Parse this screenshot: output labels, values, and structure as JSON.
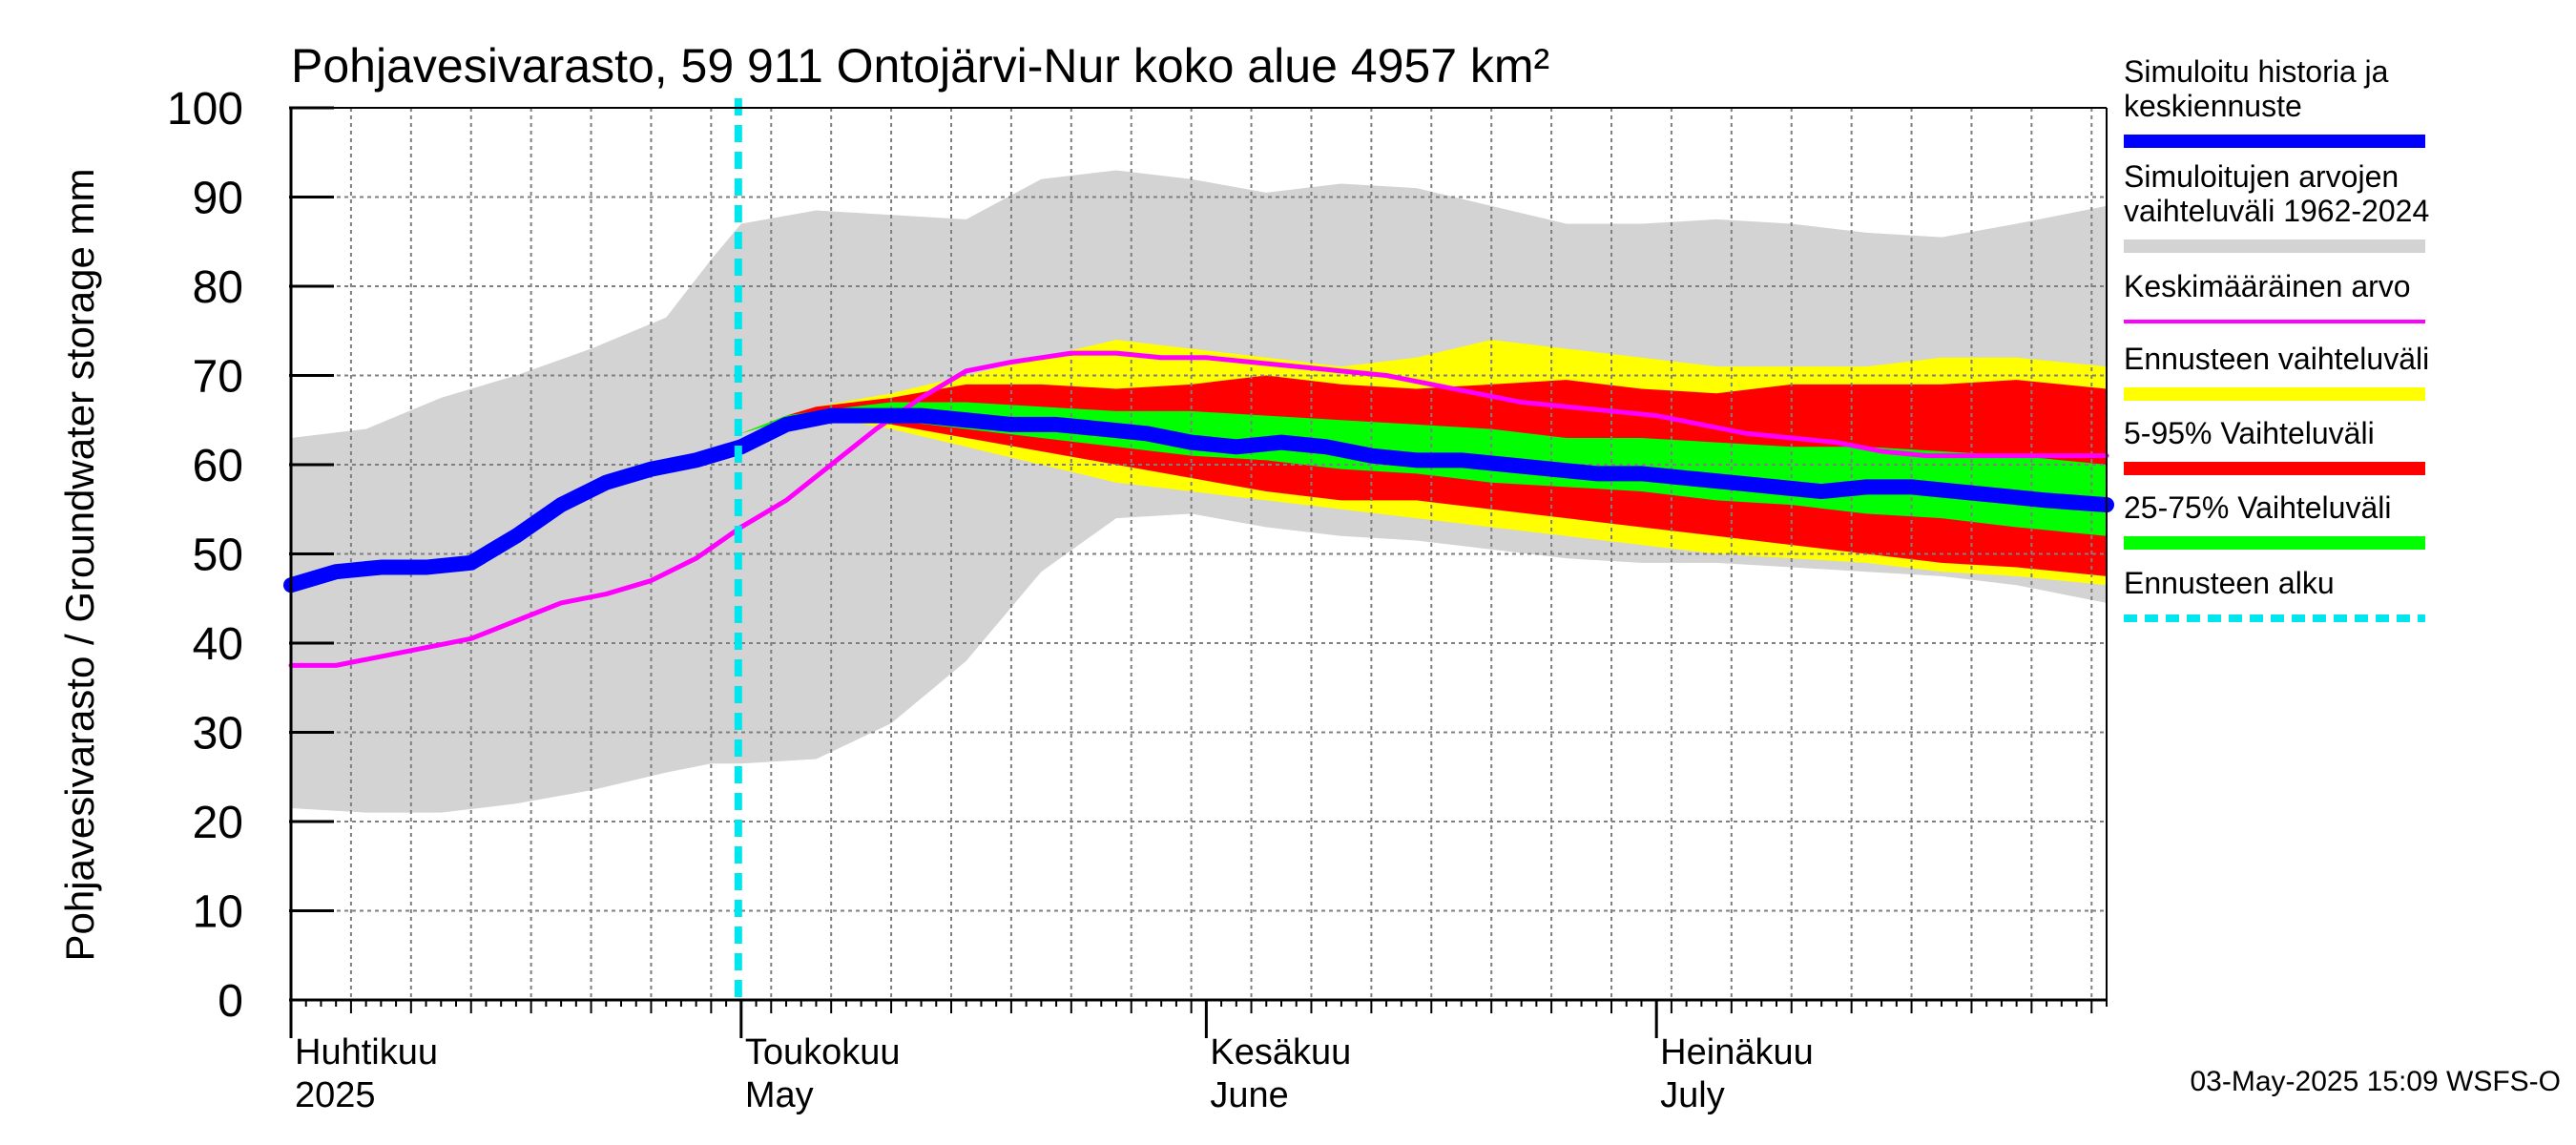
{
  "chart_data": {
    "type": "area",
    "title": "Pohjavesivarasto, 59 911 Ontojärvi-Nur koko alue 4957 km²",
    "ylabel": "Pohjavesivarasto / Groundwater storage   mm",
    "ylim": [
      0,
      100
    ],
    "yticks": [
      0,
      10,
      20,
      30,
      40,
      50,
      60,
      70,
      80,
      90,
      100
    ],
    "xlim_days": [
      0,
      121
    ],
    "x_unit": "days since 2025-04-01",
    "month_labels": [
      {
        "day": 0,
        "line1": "Huhtikuu",
        "line2": "2025"
      },
      {
        "day": 30,
        "line1": "Toukokuu",
        "line2": "May"
      },
      {
        "day": 61,
        "line1": "Kesäkuu",
        "line2": "June"
      },
      {
        "day": 91,
        "line1": "Heinäkuu",
        "line2": "July"
      }
    ],
    "forecast_start_day": 30,
    "series": {
      "hist_range": {
        "name": "Simuloitujen arvojen vaihteluväli 1962-2024",
        "color": "#d3d3d3",
        "x": [
          0,
          5,
          10,
          15,
          20,
          25,
          28,
          30,
          35,
          40,
          45,
          50,
          55,
          60,
          65,
          70,
          75,
          80,
          85,
          90,
          95,
          100,
          105,
          110,
          115,
          121
        ],
        "high": [
          63,
          64,
          67.5,
          70,
          73,
          76.5,
          83,
          87,
          88.5,
          88,
          87.5,
          92,
          93,
          92,
          90.5,
          91.5,
          91,
          89,
          87,
          87,
          87.5,
          87,
          86,
          85.5,
          87,
          89
        ],
        "low": [
          21.5,
          21,
          21,
          22,
          23.5,
          25.5,
          26.5,
          26.5,
          27,
          31,
          38,
          48,
          54,
          54.5,
          53,
          52,
          51.5,
          50.5,
          49.5,
          49,
          49,
          48.5,
          48,
          47.5,
          46.5,
          44.5
        ]
      },
      "forecast_range": {
        "name": "Ennusteen vaihteluväli",
        "color": "#ffff00",
        "x": [
          30,
          33,
          35,
          40,
          45,
          50,
          55,
          60,
          65,
          70,
          75,
          80,
          85,
          90,
          95,
          100,
          105,
          110,
          115,
          121
        ],
        "high": [
          63.5,
          65.5,
          66.5,
          68,
          70,
          72,
          74,
          73,
          72,
          71,
          72,
          74,
          73,
          72,
          71,
          71,
          71,
          72,
          72,
          71
        ],
        "low": [
          63.5,
          65,
          65.5,
          64,
          62,
          60,
          58,
          57,
          56,
          55,
          54,
          53,
          52,
          51,
          50,
          49.5,
          49,
          48,
          47.5,
          46.5
        ]
      },
      "p5_95": {
        "name": "5-95% Vaihteluväli",
        "color": "#ff0000",
        "x": [
          30,
          33,
          35,
          40,
          45,
          50,
          55,
          60,
          65,
          70,
          75,
          80,
          85,
          90,
          95,
          100,
          105,
          110,
          115,
          121
        ],
        "high": [
          63.5,
          65.5,
          66.5,
          67.5,
          69,
          69,
          68.5,
          69,
          70,
          69,
          68.5,
          69,
          69.5,
          68.5,
          68,
          69,
          69,
          69,
          69.5,
          68.5
        ],
        "low": [
          63.5,
          65,
          65.5,
          64.5,
          63,
          61.5,
          60,
          58.5,
          57,
          56,
          56,
          55,
          54,
          53,
          52,
          51,
          50,
          49,
          48.5,
          47.5
        ]
      },
      "p25_75": {
        "name": "25-75% Vaihteluväli",
        "color": "#00ff00",
        "x": [
          30,
          33,
          35,
          40,
          45,
          50,
          55,
          60,
          65,
          70,
          75,
          80,
          85,
          90,
          95,
          100,
          105,
          110,
          115,
          121
        ],
        "high": [
          63.5,
          65.5,
          66,
          67,
          67,
          66.5,
          66,
          66,
          65.5,
          65,
          64.5,
          64,
          63,
          63,
          62.5,
          62,
          62,
          61.5,
          61,
          60
        ],
        "low": [
          63.5,
          65,
          65.5,
          65,
          64,
          63,
          62,
          61,
          60.5,
          59.5,
          59,
          58,
          57.5,
          57,
          56,
          55.5,
          54.5,
          54,
          53,
          52
        ]
      },
      "mean": {
        "name": "Keskimääräinen arvo",
        "color": "#ff00ff",
        "x": [
          0,
          3,
          6,
          9,
          12,
          15,
          18,
          21,
          24,
          27,
          30,
          33,
          36,
          39,
          42,
          45,
          48,
          50,
          52,
          55,
          58,
          61,
          64,
          67,
          70,
          73,
          76,
          79,
          82,
          85,
          88,
          91,
          94,
          97,
          100,
          103,
          106,
          109,
          112,
          115,
          118,
          121
        ],
        "y": [
          37.5,
          37.5,
          38.5,
          39.5,
          40.5,
          42.5,
          44.5,
          45.5,
          47,
          49.5,
          53,
          56,
          60,
          64,
          67.5,
          70.5,
          71.5,
          72,
          72.5,
          72.5,
          72,
          72,
          71.5,
          71,
          70.5,
          70,
          69,
          68,
          67,
          66.5,
          66,
          65.5,
          64.5,
          63.5,
          63,
          62.5,
          61.5,
          61,
          61,
          61,
          61,
          61
        ]
      },
      "simulated": {
        "name": "Simuloitu historia ja keskiennuste",
        "color": "#0000ff",
        "x": [
          0,
          3,
          6,
          9,
          12,
          15,
          18,
          21,
          24,
          27,
          30,
          33,
          36,
          39,
          42,
          45,
          48,
          51,
          54,
          57,
          60,
          63,
          66,
          69,
          72,
          75,
          78,
          81,
          84,
          87,
          90,
          93,
          96,
          99,
          102,
          105,
          108,
          111,
          114,
          117,
          121
        ],
        "y": [
          46.5,
          48,
          48.5,
          48.5,
          49,
          52,
          55.5,
          58,
          59.5,
          60.5,
          62,
          64.5,
          65.5,
          65.5,
          65.5,
          65,
          64.5,
          64.5,
          64,
          63.5,
          62.5,
          62,
          62.5,
          62,
          61,
          60.5,
          60.5,
          60,
          59.5,
          59,
          59,
          58.5,
          58,
          57.5,
          57,
          57.5,
          57.5,
          57,
          56.5,
          56,
          55.5
        ]
      }
    },
    "forecast_marker": {
      "name": "Ennusteen alku",
      "color": "#00e5ee",
      "day": 30
    },
    "legend": [
      {
        "key": "simulated",
        "lines": [
          "Simuloitu historia ja",
          "keskiennuste"
        ],
        "color": "#0000ff",
        "style": "thick"
      },
      {
        "key": "hist_range",
        "lines": [
          "Simuloitujen arvojen",
          "vaihteluväli 1962-2024"
        ],
        "color": "#d3d3d3",
        "style": "thick"
      },
      {
        "key": "mean",
        "lines": [
          "Keskimääräinen arvo"
        ],
        "color": "#ff00ff",
        "style": "thin"
      },
      {
        "key": "forecast_range",
        "lines": [
          "Ennusteen vaihteluväli"
        ],
        "color": "#ffff00",
        "style": "thick"
      },
      {
        "key": "p5_95",
        "lines": [
          "5-95% Vaihteluväli"
        ],
        "color": "#ff0000",
        "style": "thick"
      },
      {
        "key": "p25_75",
        "lines": [
          "25-75% Vaihteluväli"
        ],
        "color": "#00ff00",
        "style": "thick"
      },
      {
        "key": "forecast_marker",
        "lines": [
          "Ennusteen alku"
        ],
        "color": "#00e5ee",
        "style": "dashed"
      }
    ],
    "footer": "03-May-2025 15:09 WSFS-O"
  }
}
